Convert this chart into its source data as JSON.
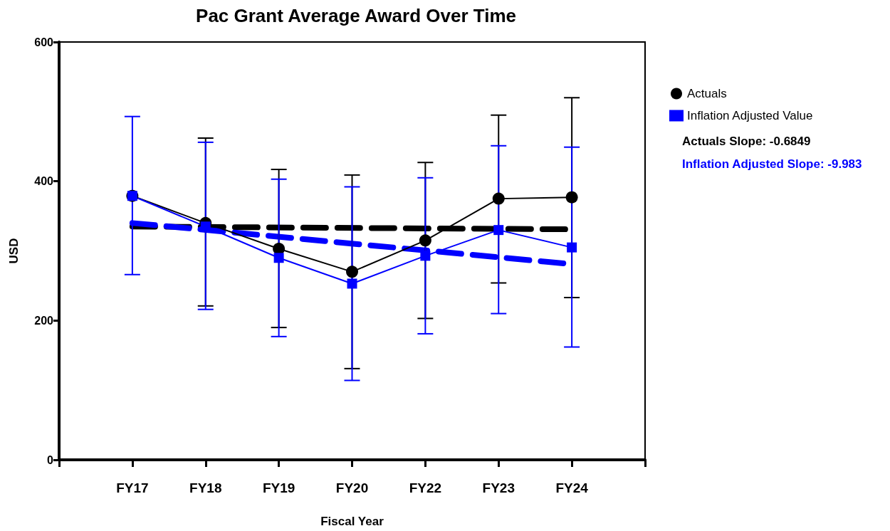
{
  "chart_data": {
    "type": "line",
    "title": "Pac Grant Average Award Over Time",
    "xlabel": "Fiscal Year",
    "ylabel": "USD",
    "categories": [
      "FY17",
      "FY18",
      "FY19",
      "FY20",
      "FY22",
      "FY23",
      "FY24"
    ],
    "ylim": [
      0,
      600
    ],
    "yticks": [
      0,
      200,
      400,
      600
    ],
    "grid": false,
    "legend": "right",
    "series": [
      {
        "name": "Actuals",
        "color": "#000000",
        "marker": "circle",
        "values": [
          379,
          340,
          303,
          270,
          315,
          375,
          377
        ],
        "errors": [
          null,
          [
            221,
            462
          ],
          [
            190,
            417
          ],
          [
            131,
            409
          ],
          [
            203,
            427
          ],
          [
            254,
            495
          ],
          [
            233,
            520
          ]
        ]
      },
      {
        "name": "Inflation Adjusted Value",
        "color": "#0000ff",
        "marker": "square",
        "values": [
          379,
          335,
          290,
          253,
          293,
          330,
          305
        ],
        "errors": [
          [
            266,
            493
          ],
          [
            216,
            456
          ],
          [
            177,
            403
          ],
          [
            114,
            392
          ],
          [
            181,
            405
          ],
          [
            210,
            451
          ],
          [
            162,
            449
          ]
        ]
      },
      {
        "type": "line",
        "color": "#000000",
        "marker": "none",
        "line_style": "dashed",
        "x": [
          "FY17",
          "FY24"
        ],
        "values": [
          335,
          331
        ]
      },
      {
        "type": "line",
        "color": "#0000ff",
        "marker": "none",
        "line_style": "dashed",
        "x": [
          "FY17",
          "FY24"
        ],
        "values": [
          340,
          281
        ]
      }
    ],
    "annotations": [
      "Actuals Slope: -0.6849",
      "Inflation Adjusted Slope: -9.983"
    ]
  }
}
